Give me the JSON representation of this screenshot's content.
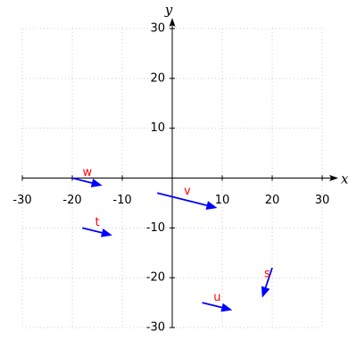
{
  "chart_data": {
    "type": "vector",
    "xlabel": "x",
    "ylabel": "y",
    "xlim": [
      -30,
      30
    ],
    "ylim": [
      -30,
      30
    ],
    "xticks": [
      -30,
      -20,
      -10,
      10,
      20,
      30
    ],
    "yticks": [
      -30,
      -20,
      -10,
      10,
      20,
      30
    ],
    "grid": true,
    "color": "#0000ff",
    "label_color": "#ff0000",
    "vectors": [
      {
        "name": "w",
        "x": -20,
        "y": 0,
        "x2": -14,
        "y2": -1.5
      },
      {
        "name": "v",
        "x": -3,
        "y": -3,
        "x2": 9,
        "y2": -6
      },
      {
        "name": "t",
        "x": -18,
        "y": -10,
        "x2": -12,
        "y2": -11.5
      },
      {
        "name": "s",
        "x": 20,
        "y": -18,
        "x2": 18,
        "y2": -24
      },
      {
        "name": "u",
        "x": 6,
        "y": -25,
        "x2": 12,
        "y2": -26.5
      }
    ]
  }
}
